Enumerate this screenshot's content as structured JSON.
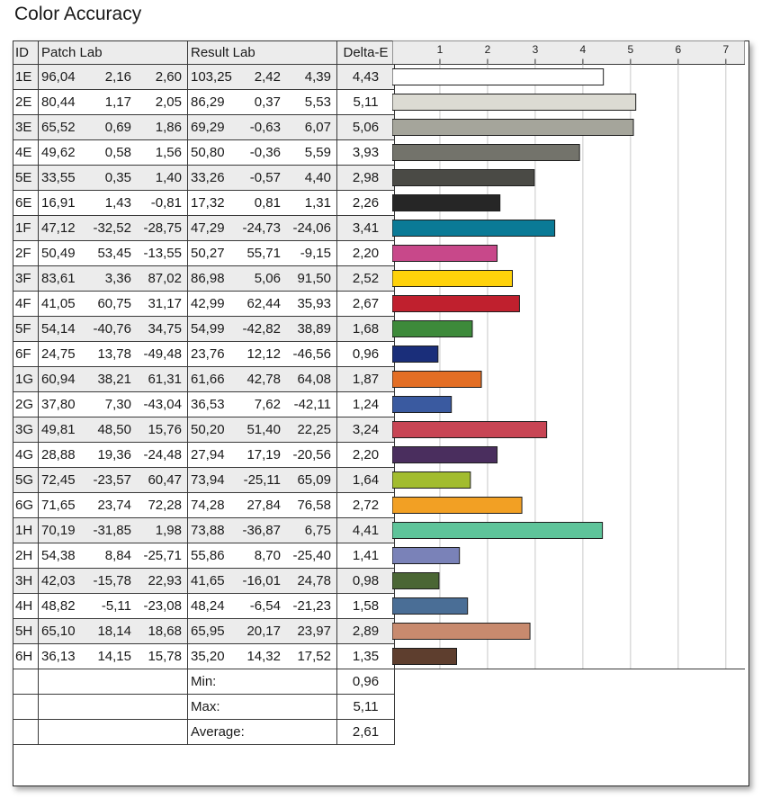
{
  "title": "Color Accuracy",
  "headers": {
    "id": "ID",
    "patch": "Patch Lab",
    "result": "Result Lab",
    "delta": "Delta-E"
  },
  "summary": [
    {
      "label": "Min:",
      "value": "0,96"
    },
    {
      "label": "Max:",
      "value": "5,11"
    },
    {
      "label": "Average:",
      "value": "2,61"
    }
  ],
  "chart_data": {
    "type": "bar",
    "orientation": "horizontal",
    "title": "Color Accuracy",
    "xlim": [
      0,
      7.4
    ],
    "ticks": [
      "1",
      "2",
      "3",
      "4",
      "5",
      "6",
      "7"
    ],
    "grid": true,
    "rows": [
      {
        "id": "1E",
        "patch": [
          "96,04",
          "2,16",
          "2,60"
        ],
        "result": [
          "103,25",
          "2,42",
          "4,39"
        ],
        "delta": "4,43",
        "value": 4.43,
        "color": "#ffffff"
      },
      {
        "id": "2E",
        "patch": [
          "80,44",
          "1,17",
          "2,05"
        ],
        "result": [
          "86,29",
          "0,37",
          "5,53"
        ],
        "delta": "5,11",
        "value": 5.11,
        "color": "#dcdbd3"
      },
      {
        "id": "3E",
        "patch": [
          "65,52",
          "0,69",
          "1,86"
        ],
        "result": [
          "69,29",
          "-0,63",
          "6,07"
        ],
        "delta": "5,06",
        "value": 5.06,
        "color": "#a5a59b"
      },
      {
        "id": "4E",
        "patch": [
          "49,62",
          "0,58",
          "1,56"
        ],
        "result": [
          "50,80",
          "-0,36",
          "5,59"
        ],
        "delta": "3,93",
        "value": 3.93,
        "color": "#73736b"
      },
      {
        "id": "5E",
        "patch": [
          "33,55",
          "0,35",
          "1,40"
        ],
        "result": [
          "33,26",
          "-0,57",
          "4,40"
        ],
        "delta": "2,98",
        "value": 2.98,
        "color": "#4a4a45"
      },
      {
        "id": "6E",
        "patch": [
          "16,91",
          "1,43",
          "-0,81"
        ],
        "result": [
          "17,32",
          "0,81",
          "1,31"
        ],
        "delta": "2,26",
        "value": 2.26,
        "color": "#262626"
      },
      {
        "id": "1F",
        "patch": [
          "47,12",
          "-32,52",
          "-28,75"
        ],
        "result": [
          "47,29",
          "-24,73",
          "-24,06"
        ],
        "delta": "3,41",
        "value": 3.41,
        "color": "#0a7a96"
      },
      {
        "id": "2F",
        "patch": [
          "50,49",
          "53,45",
          "-13,55"
        ],
        "result": [
          "50,27",
          "55,71",
          "-9,15"
        ],
        "delta": "2,20",
        "value": 2.2,
        "color": "#c8488a"
      },
      {
        "id": "3F",
        "patch": [
          "83,61",
          "3,36",
          "87,02"
        ],
        "result": [
          "86,98",
          "5,06",
          "91,50"
        ],
        "delta": "2,52",
        "value": 2.52,
        "color": "#ffd20a"
      },
      {
        "id": "4F",
        "patch": [
          "41,05",
          "60,75",
          "31,17"
        ],
        "result": [
          "42,99",
          "62,44",
          "35,93"
        ],
        "delta": "2,67",
        "value": 2.67,
        "color": "#c0202e"
      },
      {
        "id": "5F",
        "patch": [
          "54,14",
          "-40,76",
          "34,75"
        ],
        "result": [
          "54,99",
          "-42,82",
          "38,89"
        ],
        "delta": "1,68",
        "value": 1.68,
        "color": "#3d8a3a"
      },
      {
        "id": "6F",
        "patch": [
          "24,75",
          "13,78",
          "-49,48"
        ],
        "result": [
          "23,76",
          "12,12",
          "-46,56"
        ],
        "delta": "0,96",
        "value": 0.96,
        "color": "#1a2e7a"
      },
      {
        "id": "1G",
        "patch": [
          "60,94",
          "38,21",
          "61,31"
        ],
        "result": [
          "61,66",
          "42,78",
          "64,08"
        ],
        "delta": "1,87",
        "value": 1.87,
        "color": "#e36e24"
      },
      {
        "id": "2G",
        "patch": [
          "37,80",
          "7,30",
          "-43,04"
        ],
        "result": [
          "36,53",
          "7,62",
          "-42,11"
        ],
        "delta": "1,24",
        "value": 1.24,
        "color": "#3a5aa0"
      },
      {
        "id": "3G",
        "patch": [
          "49,81",
          "48,50",
          "15,76"
        ],
        "result": [
          "50,20",
          "51,40",
          "22,25"
        ],
        "delta": "3,24",
        "value": 3.24,
        "color": "#c84554"
      },
      {
        "id": "4G",
        "patch": [
          "28,88",
          "19,36",
          "-24,48"
        ],
        "result": [
          "27,94",
          "17,19",
          "-20,56"
        ],
        "delta": "2,20",
        "value": 2.2,
        "color": "#4a2e5e"
      },
      {
        "id": "5G",
        "patch": [
          "72,45",
          "-23,57",
          "60,47"
        ],
        "result": [
          "73,94",
          "-25,11",
          "65,09"
        ],
        "delta": "1,64",
        "value": 1.64,
        "color": "#a2bc2e"
      },
      {
        "id": "6G",
        "patch": [
          "71,65",
          "23,74",
          "72,28"
        ],
        "result": [
          "74,28",
          "27,84",
          "76,58"
        ],
        "delta": "2,72",
        "value": 2.72,
        "color": "#f2a024"
      },
      {
        "id": "1H",
        "patch": [
          "70,19",
          "-31,85",
          "1,98"
        ],
        "result": [
          "73,88",
          "-36,87",
          "6,75"
        ],
        "delta": "4,41",
        "value": 4.41,
        "color": "#5ec49a"
      },
      {
        "id": "2H",
        "patch": [
          "54,38",
          "8,84",
          "-25,71"
        ],
        "result": [
          "55,86",
          "8,70",
          "-25,40"
        ],
        "delta": "1,41",
        "value": 1.41,
        "color": "#7a82b8"
      },
      {
        "id": "3H",
        "patch": [
          "42,03",
          "-15,78",
          "22,93"
        ],
        "result": [
          "41,65",
          "-16,01",
          "24,78"
        ],
        "delta": "0,98",
        "value": 0.98,
        "color": "#4a6634"
      },
      {
        "id": "4H",
        "patch": [
          "48,82",
          "-5,11",
          "-23,08"
        ],
        "result": [
          "48,24",
          "-6,54",
          "-21,23"
        ],
        "delta": "1,58",
        "value": 1.58,
        "color": "#4a6e96"
      },
      {
        "id": "5H",
        "patch": [
          "65,10",
          "18,14",
          "18,68"
        ],
        "result": [
          "65,95",
          "20,17",
          "23,97"
        ],
        "delta": "2,89",
        "value": 2.89,
        "color": "#c88a6e"
      },
      {
        "id": "6H",
        "patch": [
          "36,13",
          "14,15",
          "15,78"
        ],
        "result": [
          "35,20",
          "14,32",
          "17,52"
        ],
        "delta": "1,35",
        "value": 1.35,
        "color": "#5e3e2e"
      }
    ]
  }
}
